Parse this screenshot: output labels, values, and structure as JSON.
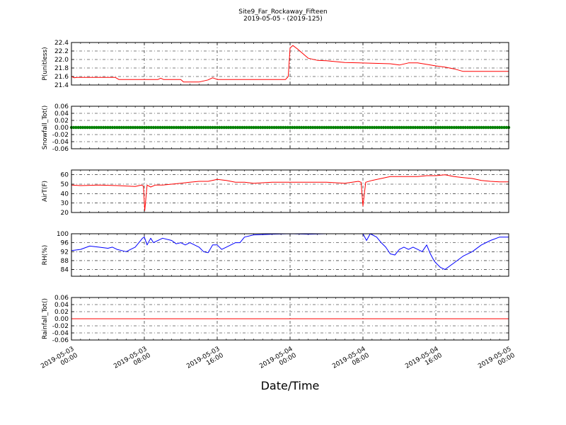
{
  "title": {
    "line1": "Site9_Far_Rockaway_Fifteen",
    "line2": "2019-05-05 - (2019-125)"
  },
  "xlabel": "Date/Time",
  "x_ticks": [
    {
      "line1": "2019-05-03",
      "line2": "00:00",
      "hour": 0
    },
    {
      "line1": "2019-05-03",
      "line2": "08:00",
      "hour": 8
    },
    {
      "line1": "2019-05-03",
      "line2": "16:00",
      "hour": 16
    },
    {
      "line1": "2019-05-04",
      "line2": "00:00",
      "hour": 24
    },
    {
      "line1": "2019-05-04",
      "line2": "08:00",
      "hour": 32
    },
    {
      "line1": "2019-05-04",
      "line2": "16:00",
      "hour": 40
    },
    {
      "line1": "2019-05-05",
      "line2": "00:00",
      "hour": 48
    }
  ],
  "chart_data": [
    {
      "type": "line",
      "ylabel": "P(unitless)",
      "ylim": [
        21.4,
        22.4
      ],
      "yticks": [
        "21.4",
        "21.6",
        "21.8",
        "22.0",
        "22.2",
        "22.4"
      ],
      "color": "#ff0000",
      "grid": true,
      "x": [
        0,
        0.3,
        0.6,
        2,
        4,
        4.8,
        5.2,
        6,
        8,
        9.5,
        9.8,
        10.1,
        12,
        12.3,
        14,
        15,
        15.5,
        16,
        18,
        20,
        23.5,
        23.8,
        24,
        24.3,
        24.8,
        25.5,
        26,
        27,
        28,
        30,
        35,
        36,
        37,
        38,
        40,
        41,
        42,
        43,
        48
      ],
      "values": [
        21.6,
        21.57,
        21.58,
        21.58,
        21.58,
        21.58,
        21.53,
        21.53,
        21.53,
        21.53,
        21.56,
        21.53,
        21.53,
        21.47,
        21.47,
        21.52,
        21.57,
        21.53,
        21.53,
        21.53,
        21.53,
        21.6,
        22.27,
        22.33,
        22.25,
        22.12,
        22.03,
        21.98,
        21.97,
        21.93,
        21.9,
        21.87,
        21.92,
        21.92,
        21.85,
        21.82,
        21.78,
        21.72,
        21.72
      ]
    },
    {
      "type": "line",
      "ylabel": "Snowfall_Tot()",
      "ylim": [
        -0.06,
        0.06
      ],
      "yticks": [
        "-0.06",
        "-0.04",
        "-0.02",
        "0.00",
        "0.02",
        "0.04",
        "0.06"
      ],
      "color": "#008000",
      "grid": true,
      "marker": "dot",
      "x": [
        0,
        48
      ],
      "values": [
        0,
        0
      ]
    },
    {
      "type": "line",
      "ylabel": "AirT(F)",
      "ylim": [
        20,
        65
      ],
      "yticks": [
        "20",
        "30",
        "40",
        "50",
        "60"
      ],
      "color": "#ff0000",
      "grid": true,
      "x": [
        0,
        1,
        3,
        5,
        7,
        7.7,
        7.9,
        8.05,
        8.3,
        8.7,
        9.2,
        10,
        11,
        12,
        13,
        14,
        15,
        16,
        17,
        18,
        19,
        20,
        22,
        24,
        26,
        28,
        30,
        31.5,
        31.8,
        32.0,
        32.3,
        33,
        34,
        35,
        36,
        37,
        38,
        39,
        40,
        41,
        42,
        43,
        44,
        45,
        46,
        47,
        48
      ],
      "values": [
        49,
        48.5,
        49,
        48.5,
        47.5,
        49,
        48,
        22,
        49,
        47,
        49,
        49,
        50,
        51,
        52,
        53,
        53,
        55,
        54,
        52,
        52,
        51,
        52,
        52,
        52,
        52,
        51,
        53,
        52,
        27,
        52,
        54,
        56,
        58,
        58,
        58,
        58,
        59,
        59,
        60,
        58,
        57,
        56,
        54,
        53,
        52.5,
        52.5
      ]
    },
    {
      "type": "line",
      "ylabel": "RH(%)",
      "ylim": [
        81,
        100
      ],
      "yticks": [
        "84",
        "88",
        "92",
        "96",
        "100"
      ],
      "color": "#0000ff",
      "grid": true,
      "x": [
        0,
        1,
        2,
        3,
        4,
        4.5,
        5,
        6,
        6.5,
        7,
        7.8,
        8.0,
        8.3,
        8.7,
        9,
        10,
        11,
        11.5,
        12,
        12.5,
        13,
        14,
        14.5,
        15,
        15.5,
        16,
        16.5,
        17,
        18,
        18.5,
        19,
        20,
        22,
        24,
        26,
        28,
        30,
        31,
        32,
        32.4,
        32.8,
        33.5,
        34,
        34.5,
        35,
        35.5,
        36,
        36.5,
        37,
        37.5,
        38,
        38.5,
        39,
        39.4,
        39.8,
        40,
        40.5,
        41,
        42,
        43,
        44,
        45,
        46,
        47,
        48
      ],
      "values": [
        92.5,
        93,
        94.5,
        94,
        93.5,
        94,
        93,
        92,
        93,
        94,
        98,
        98.5,
        95,
        98,
        96,
        98,
        97,
        95.5,
        96,
        95,
        96,
        94,
        92,
        91.5,
        95,
        95,
        93,
        94,
        96,
        96,
        98.5,
        99.5,
        99.8,
        100,
        99.8,
        100,
        100,
        100,
        100,
        97,
        100,
        98.5,
        96,
        94,
        91,
        90.5,
        93,
        94,
        93,
        94,
        93,
        92,
        95,
        91,
        88,
        87,
        85,
        84,
        87,
        90,
        92,
        95,
        97,
        98.5,
        98.5
      ]
    },
    {
      "type": "line",
      "ylabel": "Rainfall_Tot()",
      "ylim": [
        -0.06,
        0.06
      ],
      "yticks": [
        "-0.06",
        "-0.04",
        "-0.02",
        "0.00",
        "0.02",
        "0.04",
        "0.06"
      ],
      "color": "#ff0000",
      "grid": true,
      "x": [
        0,
        48
      ],
      "values": [
        0,
        0
      ]
    }
  ]
}
